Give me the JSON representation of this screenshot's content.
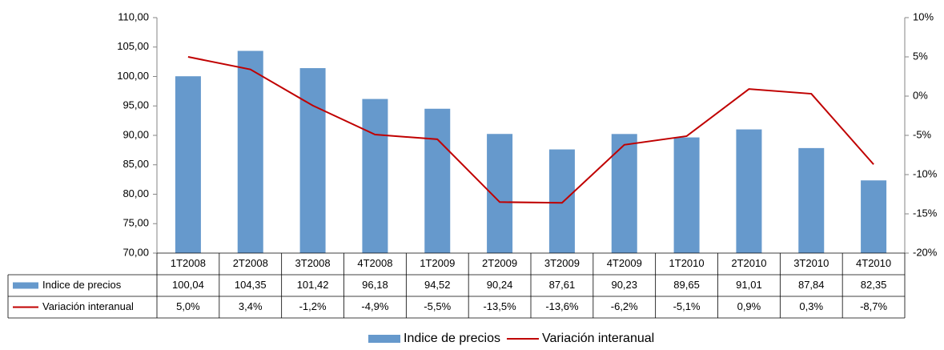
{
  "chart_data": {
    "type": "bar-line",
    "categories": [
      "1T2008",
      "2T2008",
      "3T2008",
      "4T2008",
      "1T2009",
      "2T2009",
      "3T2009",
      "4T2009",
      "1T2010",
      "2T2010",
      "3T2010",
      "4T2010"
    ],
    "series": [
      {
        "name": "Indice de precios",
        "type": "bar",
        "color": "#6699cc",
        "values": [
          100.04,
          104.35,
          101.42,
          96.18,
          94.52,
          90.24,
          87.61,
          90.23,
          89.65,
          91.01,
          87.84,
          82.35
        ],
        "value_labels": [
          "100,04",
          "104,35",
          "101,42",
          "96,18",
          "94,52",
          "90,24",
          "87,61",
          "90,23",
          "89,65",
          "91,01",
          "87,84",
          "82,35"
        ]
      },
      {
        "name": "Variación interanual",
        "type": "line",
        "axis": "y2",
        "color": "#c00000",
        "values": [
          5.0,
          3.4,
          -1.2,
          -4.9,
          -5.5,
          -13.5,
          -13.6,
          -6.2,
          -5.1,
          0.9,
          0.3,
          -8.7
        ],
        "value_labels": [
          "5,0%",
          "3,4%",
          "-1,2%",
          "-4,9%",
          "-5,5%",
          "-13,5%",
          "-13,6%",
          "-6,2%",
          "-5,1%",
          "0,9%",
          "0,3%",
          "-8,7%"
        ]
      }
    ],
    "ylim": [
      70,
      110
    ],
    "yticks": [
      {
        "value": 70,
        "label": "70,00"
      },
      {
        "value": 75,
        "label": "75,00"
      },
      {
        "value": 80,
        "label": "80,00"
      },
      {
        "value": 85,
        "label": "85,00"
      },
      {
        "value": 90,
        "label": "90,00"
      },
      {
        "value": 95,
        "label": "95,00"
      },
      {
        "value": 100,
        "label": "100,00"
      },
      {
        "value": 105,
        "label": "105,00"
      },
      {
        "value": 110,
        "label": "110,00"
      }
    ],
    "y2lim": [
      -20,
      10
    ],
    "y2ticks": [
      {
        "value": -20,
        "label": "-20%"
      },
      {
        "value": -15,
        "label": "-15%"
      },
      {
        "value": -10,
        "label": "-10%"
      },
      {
        "value": -5,
        "label": "-5%"
      },
      {
        "value": 0,
        "label": "0%"
      },
      {
        "value": 5,
        "label": "5%"
      },
      {
        "value": 10,
        "label": "10%"
      }
    ]
  }
}
